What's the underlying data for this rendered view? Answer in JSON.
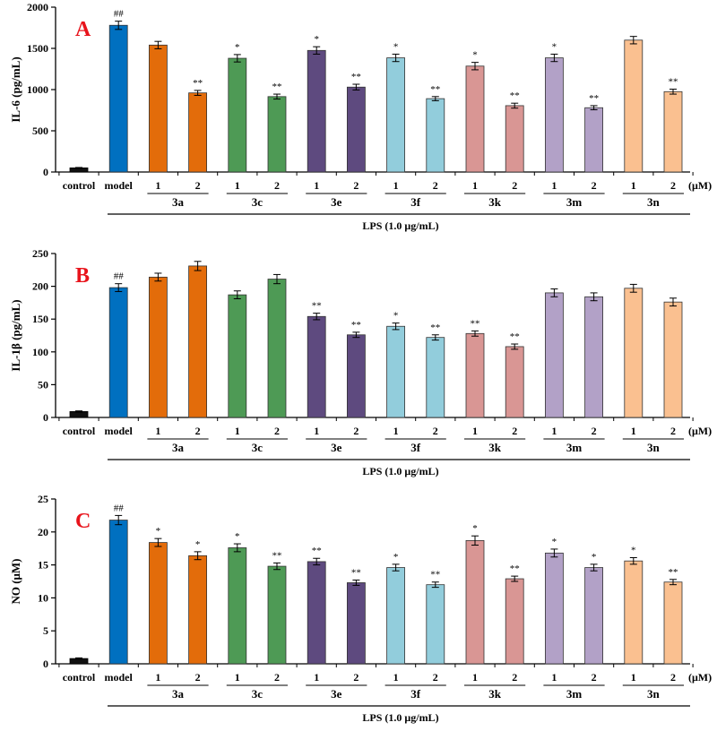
{
  "unit_label": "(μM)",
  "lps_label": "LPS (1.0 μg/mL)",
  "categories": [
    "control",
    "model",
    "1",
    "2",
    "1",
    "2",
    "1",
    "2",
    "1",
    "2",
    "1",
    "2",
    "1",
    "2",
    "1",
    "2"
  ],
  "groups": [
    {
      "name": "3a",
      "start": 2,
      "end": 3
    },
    {
      "name": "3c",
      "start": 4,
      "end": 5
    },
    {
      "name": "3e",
      "start": 6,
      "end": 7
    },
    {
      "name": "3f",
      "start": 8,
      "end": 9
    },
    {
      "name": "3k",
      "start": 10,
      "end": 11
    },
    {
      "name": "3m",
      "start": 12,
      "end": 13
    },
    {
      "name": "3n",
      "start": 14,
      "end": 15
    }
  ],
  "colors": [
    "#111111",
    "#0070c0",
    "#e36c0a",
    "#e36c0a",
    "#4e9a55",
    "#4e9a55",
    "#5e4a7f",
    "#5e4a7f",
    "#92cddc",
    "#92cddc",
    "#d99694",
    "#d99694",
    "#b2a1c7",
    "#b2a1c7",
    "#fac090",
    "#fac090"
  ],
  "chart_data": [
    {
      "type": "bar",
      "panel": "A",
      "ylabel": "IL-6 (pg/mL)",
      "ylim": [
        0,
        2000
      ],
      "yticks": [
        0,
        500,
        1000,
        1500,
        2000
      ],
      "values": [
        50,
        1780,
        1540,
        960,
        1380,
        915,
        1475,
        1030,
        1385,
        890,
        1285,
        805,
        1385,
        780,
        1600,
        975
      ],
      "errors": [
        5,
        50,
        45,
        30,
        45,
        30,
        45,
        35,
        45,
        25,
        45,
        30,
        45,
        25,
        45,
        30
      ],
      "significance": [
        "",
        "##",
        "",
        "**",
        "*",
        "**",
        "*",
        "**",
        "*",
        "**",
        "*",
        "**",
        "*",
        "**",
        "",
        "**"
      ]
    },
    {
      "type": "bar",
      "panel": "B",
      "ylabel": "IL-1β (pg/mL)",
      "ylim": [
        0,
        250
      ],
      "yticks": [
        0,
        50,
        100,
        150,
        200,
        250
      ],
      "values": [
        9,
        198,
        214,
        231,
        187,
        211,
        154,
        126,
        139,
        122,
        128,
        108,
        190,
        184,
        197,
        176
      ],
      "errors": [
        1,
        6,
        6,
        7,
        6,
        7,
        5,
        4,
        5,
        4,
        4,
        4,
        6,
        6,
        6,
        6
      ],
      "significance": [
        "",
        "##",
        "",
        "",
        "",
        "",
        "**",
        "**",
        "*",
        "**",
        "**",
        "**",
        "",
        "",
        "",
        ""
      ]
    },
    {
      "type": "bar",
      "panel": "C",
      "ylabel": "NO (μM)",
      "ylim": [
        0,
        25
      ],
      "yticks": [
        0,
        5,
        10,
        15,
        20,
        25
      ],
      "values": [
        0.8,
        21.8,
        18.4,
        16.4,
        17.6,
        14.8,
        15.5,
        12.3,
        14.6,
        12.0,
        18.7,
        12.9,
        16.8,
        14.6,
        15.6,
        12.4
      ],
      "errors": [
        0.1,
        0.7,
        0.6,
        0.6,
        0.6,
        0.5,
        0.5,
        0.4,
        0.5,
        0.4,
        0.7,
        0.4,
        0.6,
        0.5,
        0.5,
        0.4
      ],
      "significance": [
        "",
        "##",
        "*",
        "*",
        "*",
        "**",
        "**",
        "**",
        "*",
        "**",
        "*",
        "**",
        "*",
        "*",
        "*",
        "**"
      ]
    }
  ]
}
